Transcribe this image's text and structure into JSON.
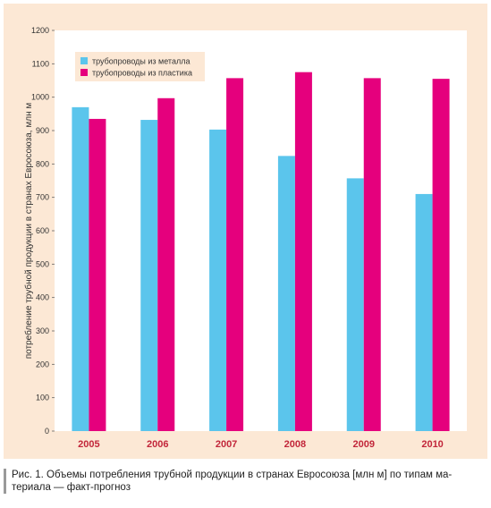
{
  "chart_data": {
    "type": "bar",
    "categories": [
      "2005",
      "2006",
      "2007",
      "2008",
      "2009",
      "2010"
    ],
    "series": [
      {
        "name": "трубопроводы из металла",
        "color": "#5bc5ec",
        "values": [
          970,
          932,
          903,
          824,
          757,
          710
        ]
      },
      {
        "name": "трубопроводы из пластика",
        "color": "#e5007d",
        "values": [
          935,
          997,
          1057,
          1075,
          1057,
          1055
        ]
      }
    ],
    "ylabel": "потребление трубной продукции в странах Евросоюза, млн м",
    "ylim": [
      0,
      1200
    ],
    "yticks": [
      0,
      100,
      200,
      300,
      400,
      500,
      600,
      700,
      800,
      900,
      1000,
      1100,
      1200
    ],
    "grid": false,
    "legend": "top-left",
    "background_color": "#fce8d5",
    "plot_color": "#ffffff"
  },
  "caption": {
    "text": "Рис. 1. Объемы потребления трубной продукции в странах Евросоюза [млн м] по типам ма-\nтериала — факт-прогноз"
  }
}
